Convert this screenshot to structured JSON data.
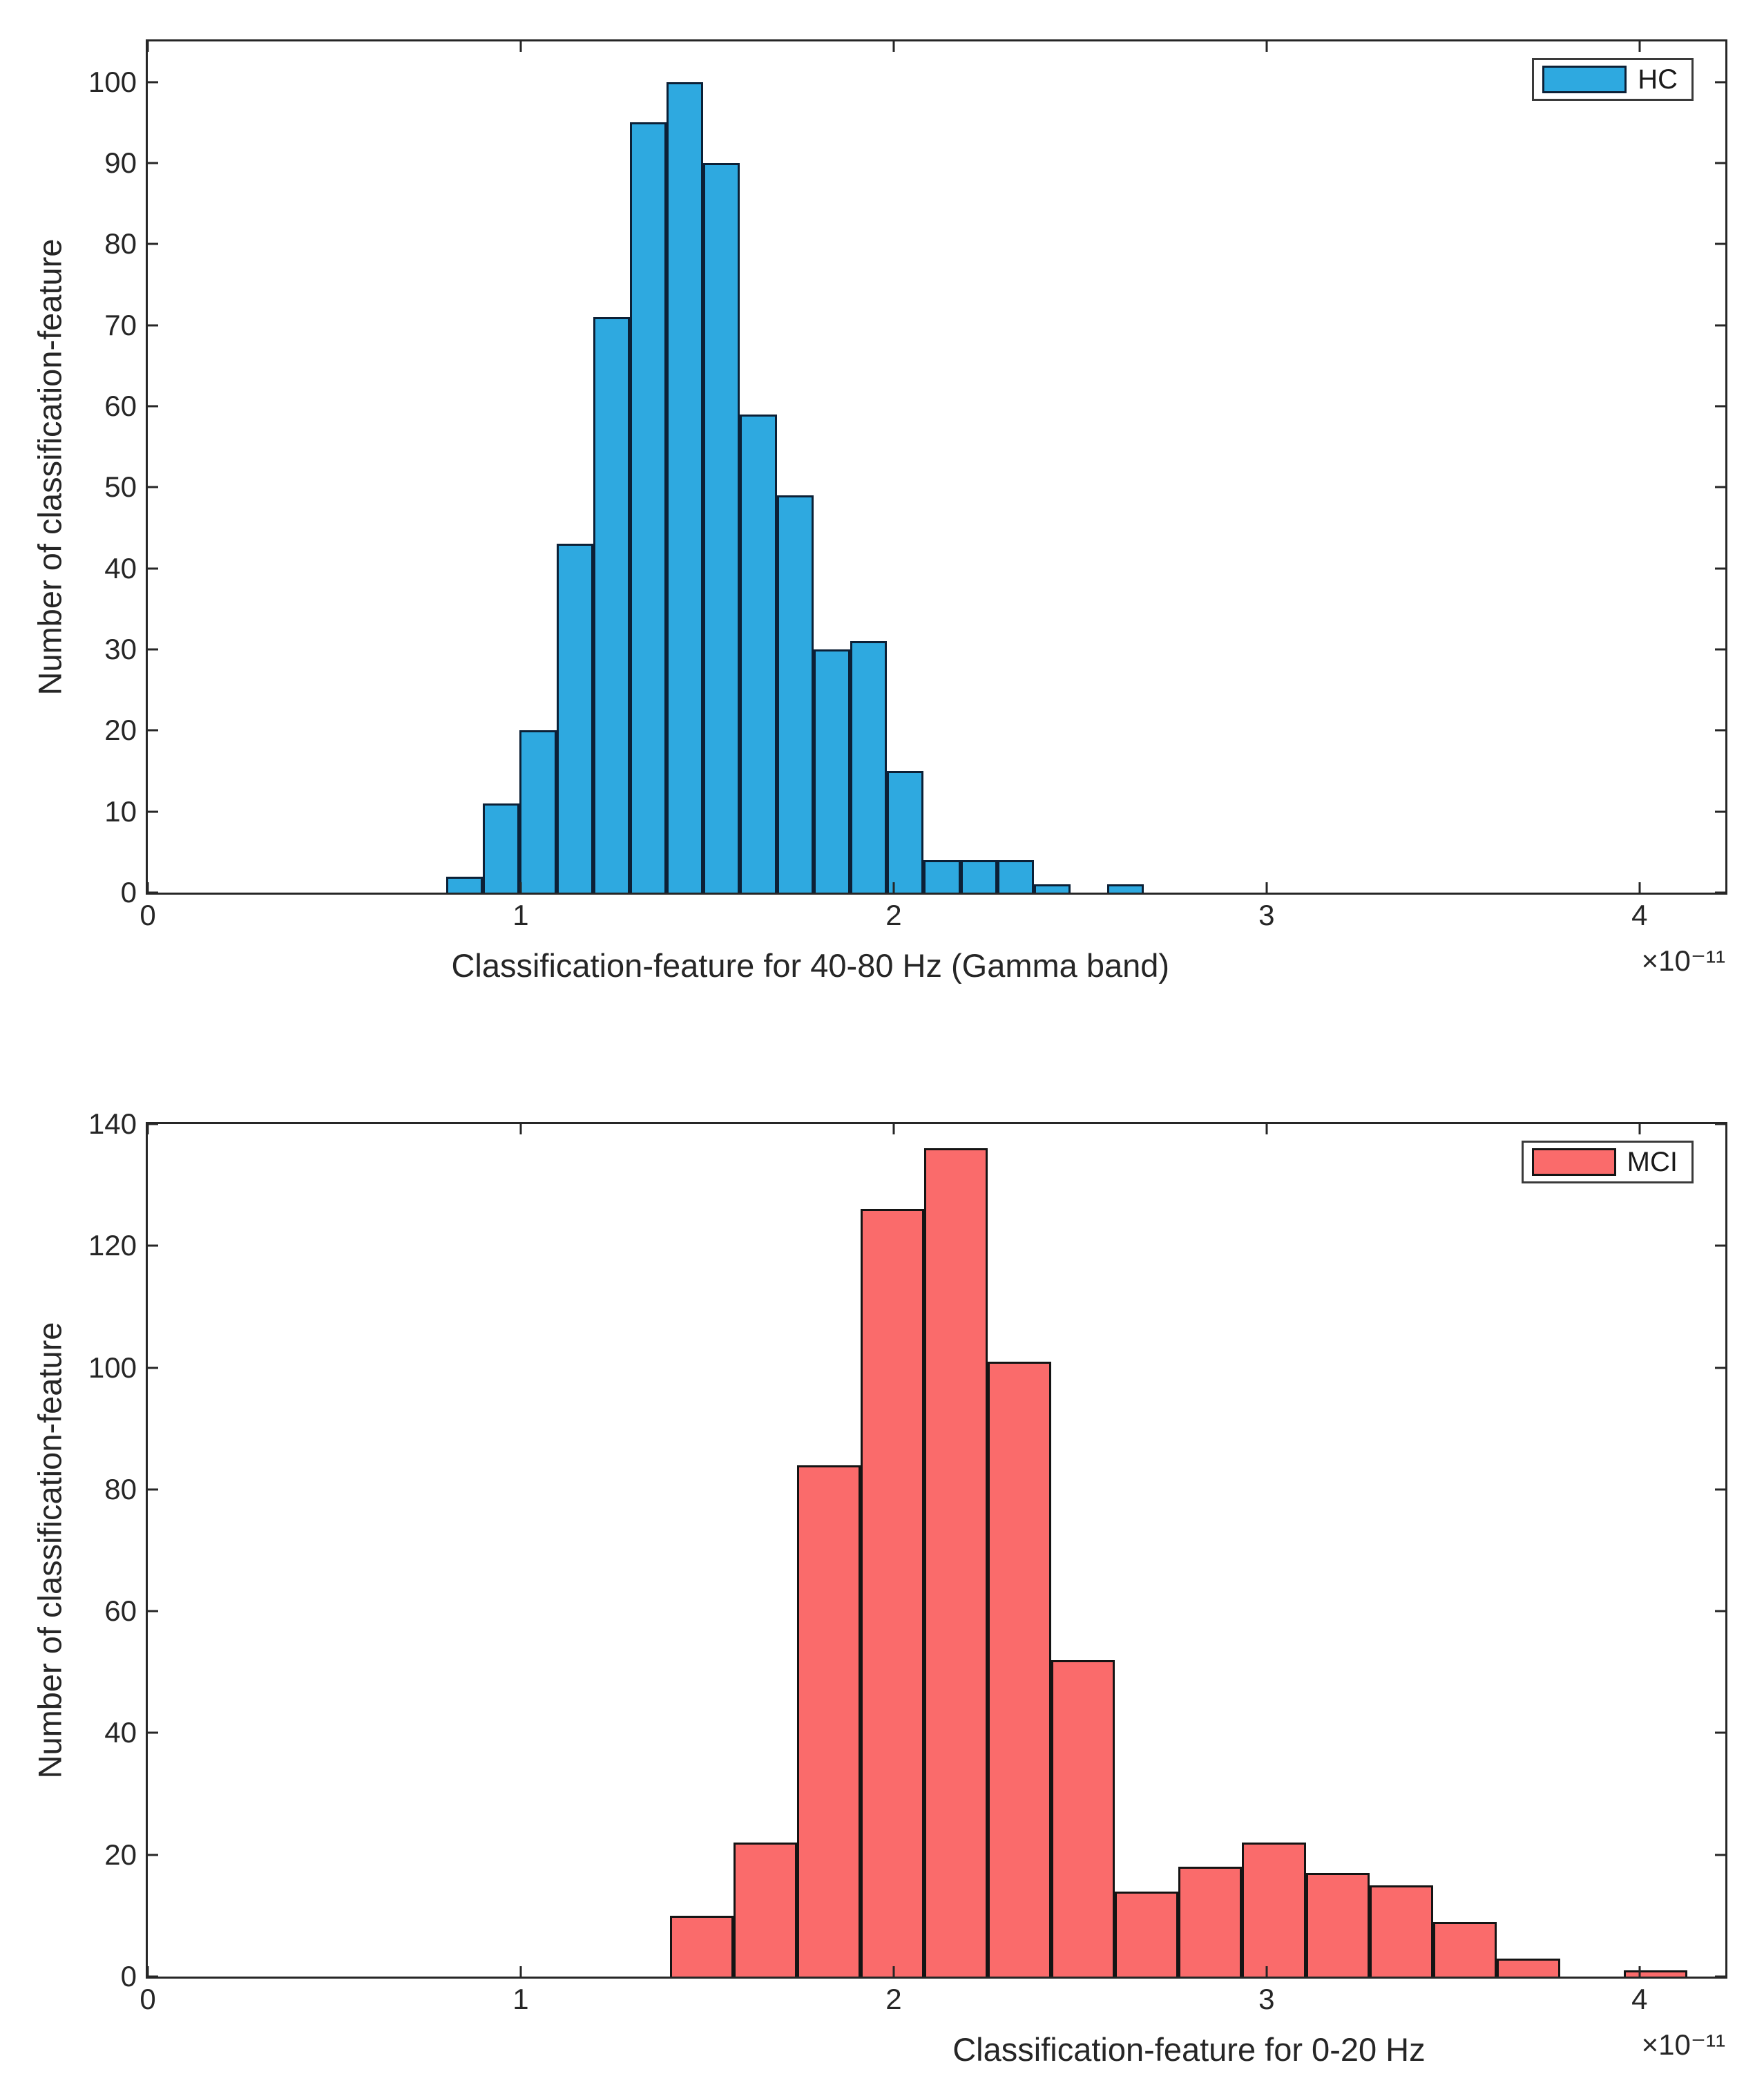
{
  "chart_data": [
    {
      "type": "bar",
      "subtype": "histogram",
      "legend": "HC",
      "legend_position": "top-right",
      "xlabel": "Classification-feature for 40-80 Hz (Gamma band)",
      "ylabel": "Number of classification-feature",
      "x_multiplier": "×10⁻¹¹",
      "xlim": [
        0,
        4.23
      ],
      "ylim": [
        0,
        105
      ],
      "xticks": [
        0,
        1,
        2,
        3,
        4
      ],
      "yticks": [
        0,
        10,
        20,
        30,
        40,
        50,
        60,
        70,
        80,
        90,
        100
      ],
      "grid": false,
      "bin_start": 0.8,
      "bin_width": 0.0985,
      "counts": [
        2,
        11,
        20,
        43,
        71,
        95,
        100,
        90,
        59,
        49,
        30,
        31,
        15,
        4,
        4,
        4,
        1,
        0,
        1
      ],
      "colors": {
        "fill": "#2EA9E0",
        "edge": "#0C2036"
      },
      "xlabel_center_pct": 42
    },
    {
      "type": "bar",
      "subtype": "histogram",
      "legend": "MCI",
      "legend_position": "top-right",
      "xlabel": "Classification-feature for 0-20 Hz",
      "ylabel": "Number of classification-feature",
      "x_multiplier": "×10⁻¹¹",
      "xlim": [
        0,
        4.23
      ],
      "ylim": [
        0,
        140
      ],
      "xticks": [
        0,
        1,
        2,
        3,
        4
      ],
      "yticks": [
        0,
        20,
        40,
        60,
        80,
        100,
        120,
        140
      ],
      "grid": false,
      "bin_start": 1.4,
      "bin_width": 0.1705,
      "counts": [
        10,
        22,
        84,
        126,
        136,
        101,
        52,
        14,
        18,
        22,
        17,
        15,
        9,
        3,
        0,
        1
      ],
      "colors": {
        "fill": "#FA6B6B",
        "edge": "#141414"
      },
      "xlabel_center_pct": 66
    }
  ]
}
